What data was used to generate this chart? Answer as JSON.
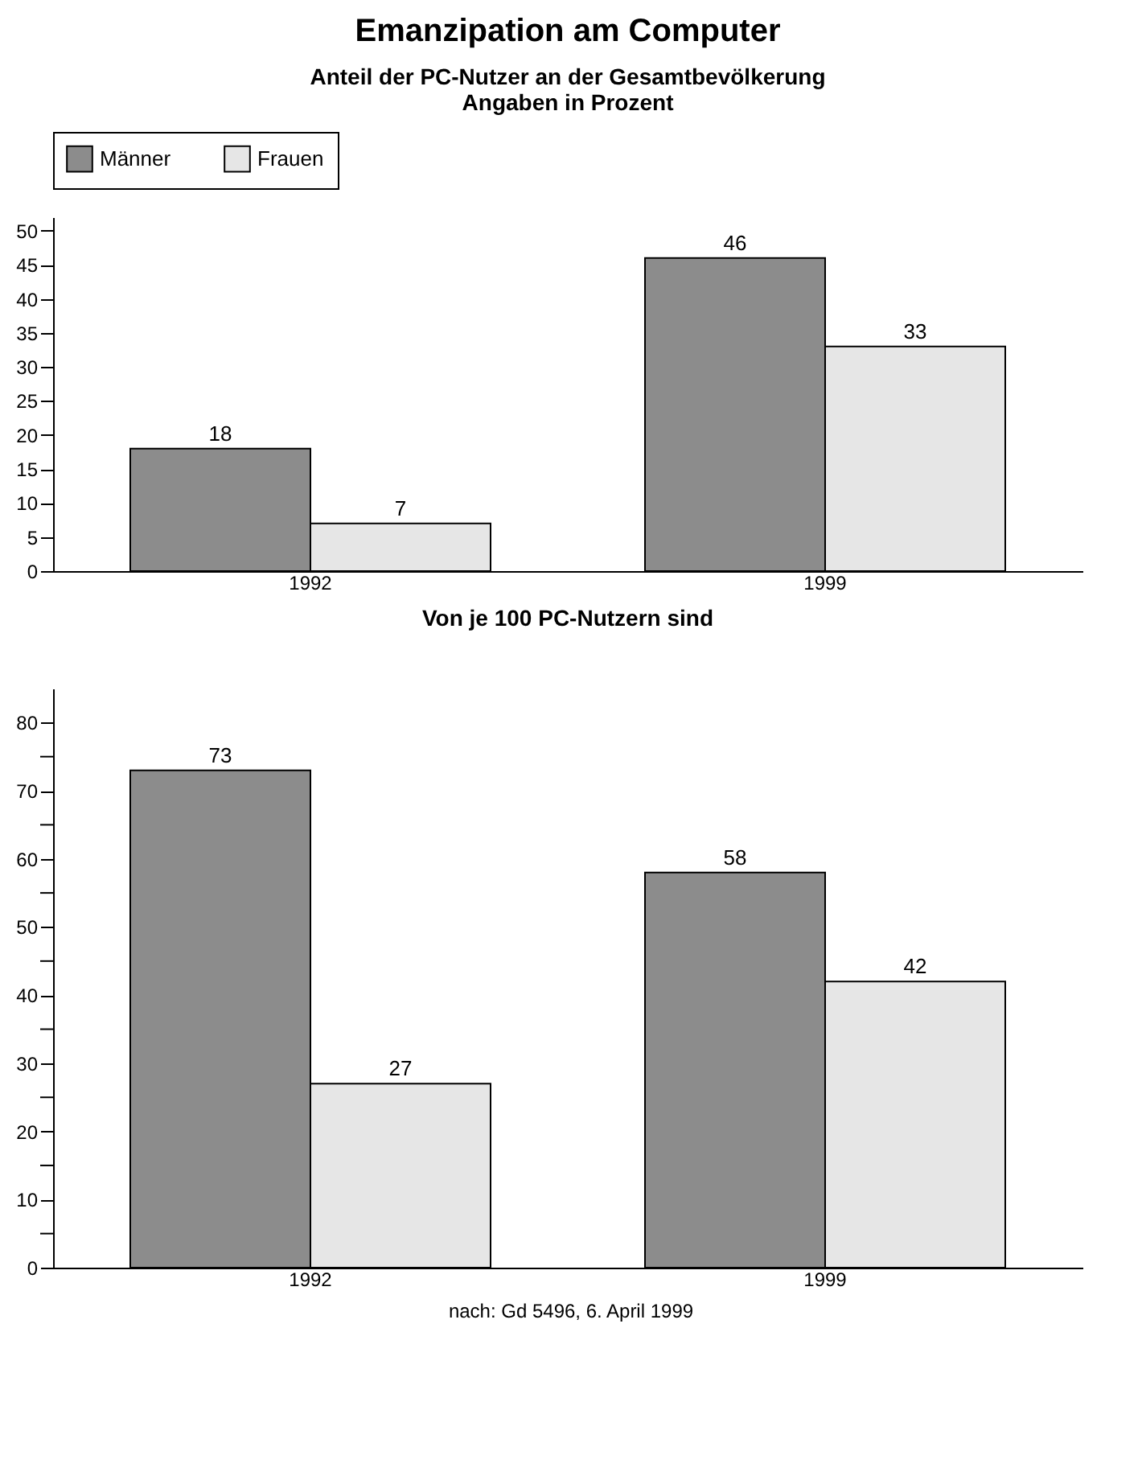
{
  "chart_data": [
    {
      "type": "bar",
      "title": "Emanzipation am Computer",
      "subtitle": "Anteil der PC-Nutzer an der Gesamtbevölkerung",
      "annotations": [
        "Angaben in Prozent"
      ],
      "categories": [
        "1992",
        "1999"
      ],
      "series": [
        {
          "name": "Männer",
          "color": "#8c8c8c",
          "values": [
            18,
            46
          ]
        },
        {
          "name": "Frauen",
          "color": "#e6e6e6",
          "values": [
            7,
            33
          ]
        }
      ],
      "ylim": [
        0,
        52
      ],
      "yticks": [
        0,
        5,
        10,
        15,
        20,
        25,
        30,
        35,
        40,
        45,
        50
      ],
      "grid": false,
      "legend": "top",
      "data_labels": true
    },
    {
      "type": "bar",
      "title": "Von je 100 PC-Nutzern sind",
      "annotations": [
        "nach: Gd 5496, 6. April 1999"
      ],
      "categories": [
        "1992",
        "1999"
      ],
      "series": [
        {
          "color": "#8c8c8c",
          "values": [
            73,
            58
          ]
        },
        {
          "color": "#e6e6e6",
          "values": [
            27,
            42
          ]
        }
      ],
      "ylim": [
        0,
        85
      ],
      "yticks": [
        0,
        {
          "value": 5,
          "label": null
        },
        10,
        {
          "value": 15,
          "label": null
        },
        20,
        {
          "value": 25,
          "label": null
        },
        30,
        {
          "value": 35,
          "label": null
        },
        40,
        {
          "value": 45,
          "label": null
        },
        50,
        {
          "value": 55,
          "label": null
        },
        60,
        {
          "value": 65,
          "label": null
        },
        70,
        {
          "value": 75,
          "label": null
        },
        80
      ],
      "grid": false,
      "legend": false,
      "data_labels": true
    }
  ]
}
